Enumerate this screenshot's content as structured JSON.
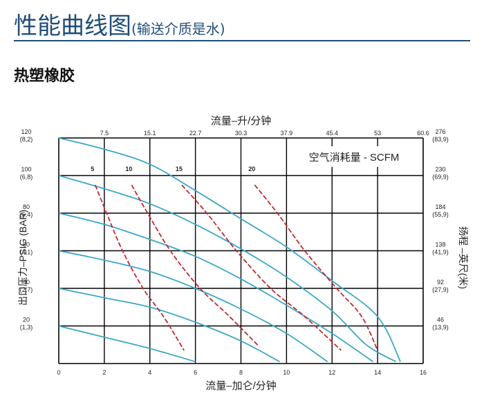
{
  "header": {
    "title": "性能曲线图",
    "subtitle": "(输送介质是水)"
  },
  "section_title": "热塑橡胶",
  "chart_data": {
    "type": "line",
    "x_bottom_label": "流量–加仑/分钟",
    "x_bottom_ticks": [
      "0",
      "2",
      "4",
      "6",
      "8",
      "10",
      "12",
      "14",
      "16"
    ],
    "x_bottom_range": [
      0,
      16
    ],
    "x_top_label": "流量–升/分钟",
    "x_top_ticks": [
      "7.5",
      "15.1",
      "22.7",
      "30.3",
      "37.9",
      "45.4",
      "53",
      "60.6"
    ],
    "y_left_label": "出口压力–PSIG (BAR)",
    "y_left_ticks": [
      {
        "value": 20,
        "psi": "20",
        "bar": "(1,3)"
      },
      {
        "value": 40,
        "psi": "40",
        "bar": "(2,7)"
      },
      {
        "value": 60,
        "psi": "60",
        "bar": "(4,1)"
      },
      {
        "value": 80,
        "psi": "80",
        "bar": "(5,4)"
      },
      {
        "value": 100,
        "psi": "100",
        "bar": "(6,8)"
      },
      {
        "value": 120,
        "psi": "120",
        "bar": "(8,2)"
      }
    ],
    "y_range": [
      0,
      120
    ],
    "y_right_label": "扬程 –英尺(米)",
    "y_right_ticks": [
      {
        "value": 20,
        "ft": "46",
        "m": "(13,9)"
      },
      {
        "value": 40,
        "ft": "92",
        "m": "(27,9)"
      },
      {
        "value": 60,
        "ft": "138",
        "m": "(41,9)"
      },
      {
        "value": 80,
        "ft": "184",
        "m": "(55,9)"
      },
      {
        "value": 100,
        "ft": "230",
        "m": "(69,9)"
      },
      {
        "value": 120,
        "ft": "276",
        "m": "(83,9)"
      }
    ],
    "legend": "空气消耗量 - SCFM",
    "grid": true,
    "colors": {
      "pressure_curves": "#3aa6c8",
      "air_curves": "#c0282e",
      "grid": "#000000",
      "legend_text": "#1a7a8a"
    },
    "pressure_curves": [
      {
        "points": [
          [
            0,
            120
          ],
          [
            2,
            114
          ],
          [
            4,
            106
          ],
          [
            6,
            92
          ],
          [
            8,
            77
          ],
          [
            10,
            62
          ],
          [
            12,
            44
          ],
          [
            14,
            25
          ],
          [
            15,
            1
          ]
        ]
      },
      {
        "points": [
          [
            0,
            100
          ],
          [
            2,
            93
          ],
          [
            4,
            85
          ],
          [
            6,
            74
          ],
          [
            8,
            61
          ],
          [
            10,
            46
          ],
          [
            12,
            28
          ],
          [
            13.5,
            10
          ],
          [
            14.8,
            1
          ]
        ]
      },
      {
        "points": [
          [
            0,
            80
          ],
          [
            2,
            74
          ],
          [
            4,
            66
          ],
          [
            6,
            57
          ],
          [
            8,
            45
          ],
          [
            10,
            31
          ],
          [
            12,
            16
          ],
          [
            13.8,
            1
          ]
        ]
      },
      {
        "points": [
          [
            0,
            60
          ],
          [
            2,
            55
          ],
          [
            4,
            49
          ],
          [
            6,
            40
          ],
          [
            8,
            29
          ],
          [
            10,
            16
          ],
          [
            11.8,
            1
          ]
        ]
      },
      {
        "points": [
          [
            0,
            40
          ],
          [
            2,
            35
          ],
          [
            4,
            30
          ],
          [
            6,
            22
          ],
          [
            8,
            12
          ],
          [
            9.7,
            1
          ]
        ]
      },
      {
        "points": [
          [
            0,
            20
          ],
          [
            2,
            14
          ],
          [
            4,
            8
          ],
          [
            6,
            1
          ]
        ]
      }
    ],
    "air_curves": [
      {
        "label": "5",
        "points": [
          [
            1.6,
            95
          ],
          [
            2.1,
            80
          ],
          [
            2.8,
            60
          ],
          [
            3.7,
            40
          ],
          [
            4.6,
            25
          ],
          [
            5.5,
            7
          ]
        ]
      },
      {
        "label": "10",
        "points": [
          [
            3.2,
            95
          ],
          [
            3.9,
            80
          ],
          [
            4.9,
            60
          ],
          [
            6.2,
            40
          ],
          [
            7.5,
            25
          ],
          [
            8.8,
            9
          ]
        ]
      },
      {
        "label": "15",
        "points": [
          [
            5.4,
            95
          ],
          [
            6.5,
            80
          ],
          [
            7.8,
            60
          ],
          [
            9.3,
            40
          ],
          [
            10.8,
            25
          ],
          [
            12.4,
            7
          ]
        ]
      },
      {
        "label": "20",
        "points": [
          [
            8.6,
            95
          ],
          [
            9.6,
            80
          ],
          [
            10.8,
            60
          ],
          [
            12.2,
            40
          ],
          [
            13.3,
            25
          ],
          [
            14,
            7
          ]
        ]
      }
    ]
  }
}
